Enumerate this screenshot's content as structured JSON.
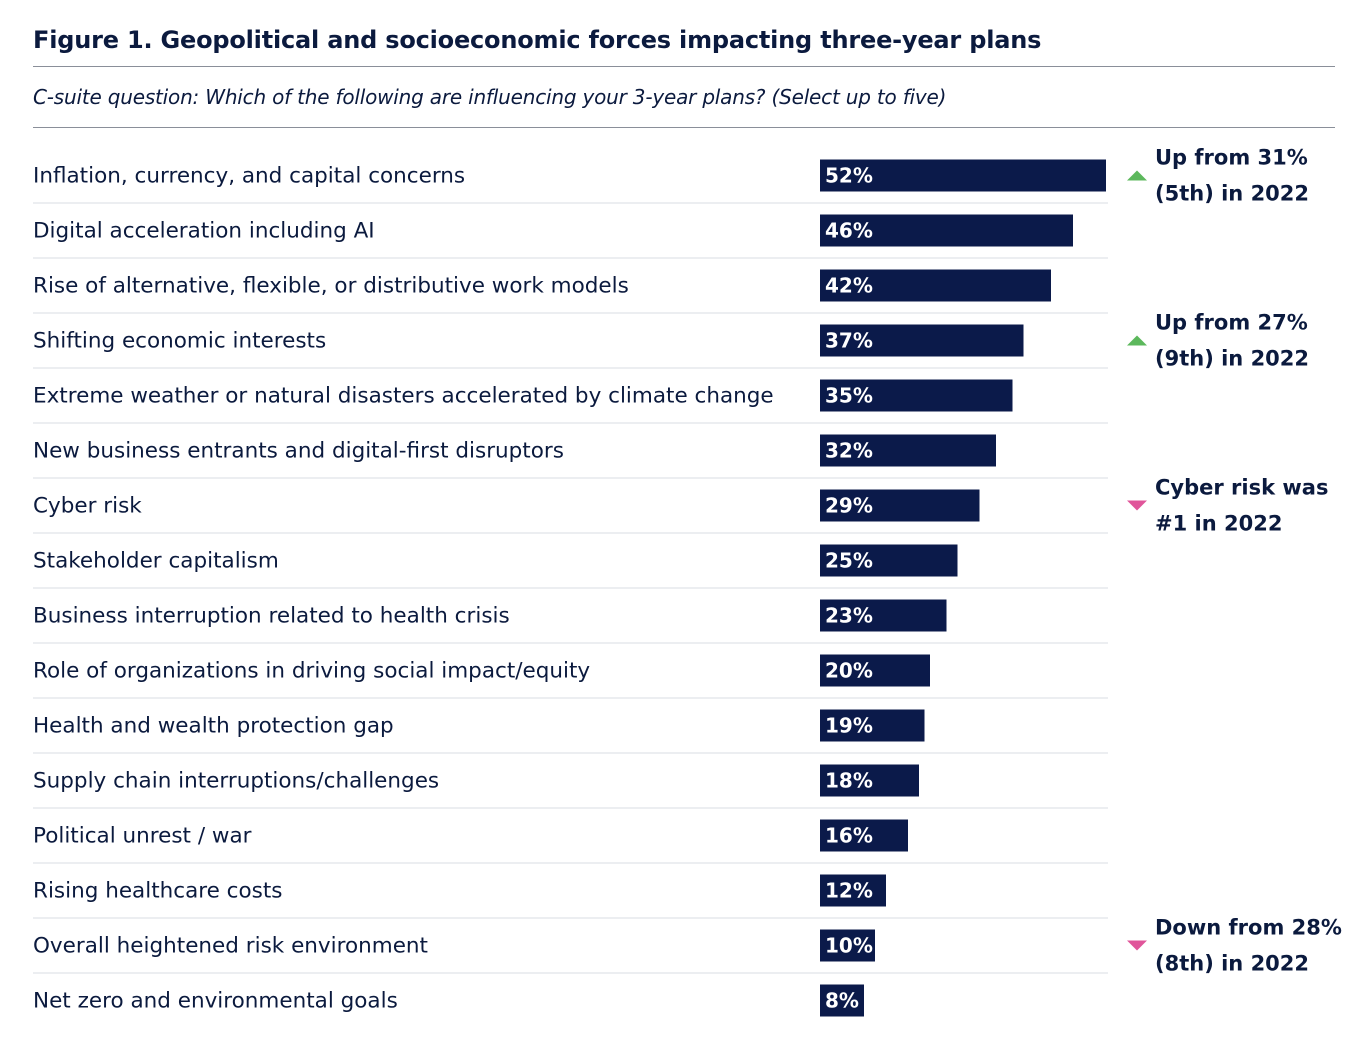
{
  "header": {
    "title": "Figure 1. Geopolitical and socioeconomic forces impacting three-year plans",
    "subtitle": "C-suite question: Which of the following are influencing your 3-year plans? (Select up to five)"
  },
  "colors": {
    "bar": "#0b1a4a",
    "up_arrow": "#5cb85c",
    "down_arrow": "#e0559a",
    "text": "#0b1a3e",
    "separator": "#d9dde3"
  },
  "chart_data": {
    "type": "bar",
    "orientation": "horizontal",
    "categories": [
      "Inflation, currency, and capital concerns",
      "Digital acceleration including AI",
      "Rise of alternative, flexible, or distributive work models",
      "Shifting economic interests",
      "Extreme weather or natural disasters accelerated by climate change",
      "New business entrants and digital-first disruptors",
      "Cyber risk",
      "Stakeholder capitalism",
      "Business interruption related to health crisis",
      "Role of organizations in driving social impact/equity",
      "Health and wealth protection gap",
      "Supply chain interruptions/challenges",
      "Political unrest / war",
      "Rising healthcare costs",
      "Overall heightened risk environment",
      "Net zero and environmental goals"
    ],
    "values": [
      52,
      46,
      42,
      37,
      35,
      32,
      29,
      25,
      23,
      20,
      19,
      18,
      16,
      12,
      10,
      8
    ],
    "value_labels": [
      "52%",
      "46%",
      "42%",
      "37%",
      "35%",
      "32%",
      "29%",
      "25%",
      "23%",
      "20%",
      "19%",
      "18%",
      "16%",
      "12%",
      "10%",
      "8%"
    ],
    "xlim": [
      0,
      52
    ],
    "grid": false,
    "legend": "none",
    "annotations": [
      {
        "category_index": 0,
        "direction": "up",
        "lines": [
          "Up from 31%",
          "(5th) in 2022"
        ]
      },
      {
        "category_index": 3,
        "direction": "up",
        "lines": [
          "Up from 27%",
          "(9th) in 2022"
        ]
      },
      {
        "category_index": 6,
        "direction": "down",
        "lines": [
          "Cyber risk was",
          "#1 in 2022"
        ]
      },
      {
        "category_index": 14,
        "direction": "down",
        "lines": [
          "Down from 28%",
          "(8th) in 2022"
        ]
      }
    ]
  }
}
